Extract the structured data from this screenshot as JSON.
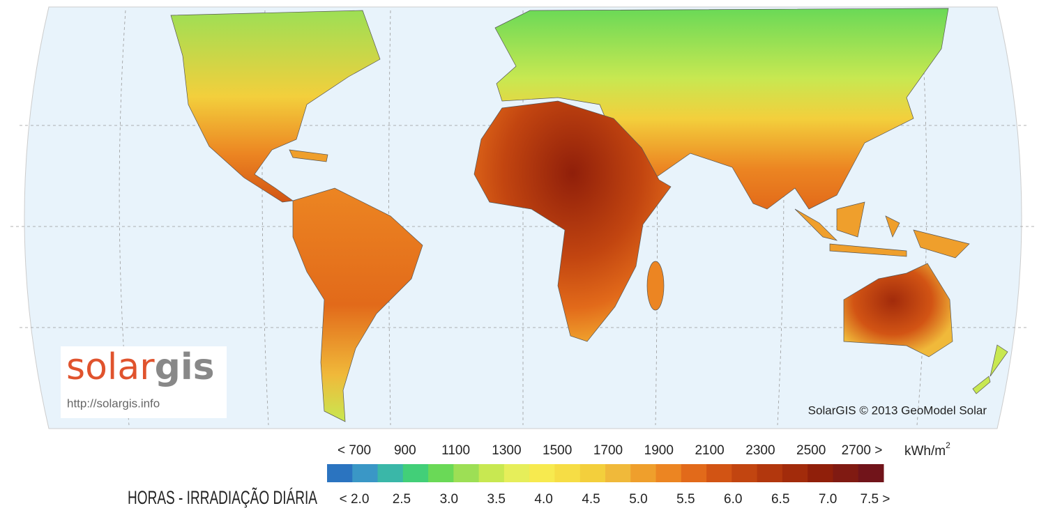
{
  "logo": {
    "part1": "solar",
    "part2": "gis",
    "url": "http://solargis.info"
  },
  "credit": "SolarGIS © 2013 GeoModel Solar",
  "legend": {
    "title": "HORAS - IRRADIAÇÃO DIÁRIA",
    "unit_base": "kWh/m",
    "unit_exp": "2",
    "top_labels": [
      "< 700",
      "900",
      "1100",
      "1300",
      "1500",
      "1700",
      "1900",
      "2100",
      "2300",
      "2500",
      "2700 >"
    ],
    "bottom_labels": [
      "< 2.0",
      "2.5",
      "3.0",
      "3.5",
      "4.0",
      "4.5",
      "5.0",
      "5.5",
      "6.0",
      "6.5",
      "7.0",
      "7.5 >"
    ],
    "colors": [
      "#2b74c0",
      "#3a97c6",
      "#3ab7a8",
      "#42cf78",
      "#6ad957",
      "#9ddf55",
      "#c8e851",
      "#e6ee5a",
      "#f7ea4f",
      "#f6dd45",
      "#f3cf3c",
      "#f0b93a",
      "#ef9f2c",
      "#ec8522",
      "#e26a1a",
      "#d25414",
      "#c24510",
      "#b2370d",
      "#a22b0b",
      "#901f0a",
      "#801a12",
      "#71141a"
    ]
  }
}
